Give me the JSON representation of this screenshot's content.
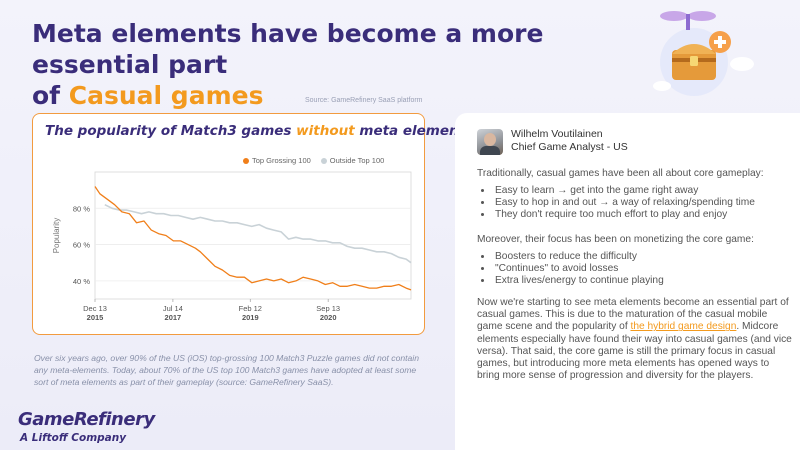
{
  "title": {
    "line1": "Meta elements have become a more essential part",
    "line2_prefix": "of ",
    "line2_accent": "Casual games"
  },
  "source_note": "Source: GameRefinery SaaS platform",
  "chart": {
    "title_prefix": "The popularity of Match3 games ",
    "title_accent": "without",
    "title_suffix": " meta elements"
  },
  "chart_data": {
    "type": "line",
    "ylabel": "Popularity",
    "xlabel": "",
    "ylim": [
      30,
      100
    ],
    "y_ticks": [
      40,
      60,
      80
    ],
    "y_tick_labels": [
      "40 %",
      "60 %",
      "80 %"
    ],
    "xlim": [
      2015.95,
      2022.4
    ],
    "x_ticks": [
      {
        "value": 2015.95,
        "month": "Dec 13",
        "year": "2015"
      },
      {
        "value": 2017.54,
        "month": "Jul 14",
        "year": "2017"
      },
      {
        "value": 2019.12,
        "month": "Feb 12",
        "year": "2019"
      },
      {
        "value": 2020.71,
        "month": "Sep 13",
        "year": "2020"
      }
    ],
    "series": [
      {
        "name": "Top Grossing 100",
        "color": "#f07f1a",
        "x": [
          2015.95,
          2016.05,
          2016.2,
          2016.35,
          2016.5,
          2016.65,
          2016.8,
          2016.95,
          2017.1,
          2017.25,
          2017.4,
          2017.55,
          2017.7,
          2017.85,
          2018.0,
          2018.1,
          2018.25,
          2018.4,
          2018.55,
          2018.7,
          2018.85,
          2019.0,
          2019.15,
          2019.3,
          2019.45,
          2019.6,
          2019.75,
          2019.9,
          2020.05,
          2020.2,
          2020.35,
          2020.5,
          2020.65,
          2020.8,
          2020.95,
          2021.1,
          2021.25,
          2021.4,
          2021.55,
          2021.7,
          2021.85,
          2022.0,
          2022.15,
          2022.3,
          2022.4
        ],
        "values": [
          92,
          88,
          85,
          82,
          78,
          77,
          72,
          73,
          68,
          66,
          65,
          62,
          62,
          60,
          58,
          56,
          52,
          48,
          46,
          43,
          42,
          42,
          39,
          40,
          41,
          40,
          41,
          39,
          40,
          42,
          41,
          40,
          38,
          39,
          37,
          37,
          38,
          37,
          36,
          36,
          37,
          37,
          38,
          36,
          35
        ]
      },
      {
        "name": "Outside Top 100",
        "color": "#c9d2d7",
        "x": [
          2016.15,
          2016.3,
          2016.45,
          2016.6,
          2016.75,
          2016.9,
          2017.05,
          2017.2,
          2017.35,
          2017.5,
          2017.65,
          2017.8,
          2017.95,
          2018.1,
          2018.25,
          2018.4,
          2018.55,
          2018.7,
          2018.85,
          2019.0,
          2019.15,
          2019.3,
          2019.45,
          2019.6,
          2019.75,
          2019.9,
          2020.05,
          2020.2,
          2020.35,
          2020.5,
          2020.65,
          2020.8,
          2020.95,
          2021.1,
          2021.25,
          2021.4,
          2021.55,
          2021.7,
          2021.85,
          2022.0,
          2022.15,
          2022.3,
          2022.4
        ],
        "values": [
          82,
          80,
          79,
          79,
          78,
          77,
          78,
          77,
          77,
          76,
          76,
          75,
          74,
          75,
          74,
          73,
          73,
          72,
          72,
          71,
          70,
          71,
          69,
          68,
          67,
          63,
          64,
          63,
          63,
          62,
          62,
          61,
          61,
          59,
          58,
          58,
          57,
          56,
          56,
          55,
          53,
          52,
          50
        ]
      }
    ]
  },
  "caption": "Over six years ago, over 90% of the US (iOS) top-grossing 100 Match3 Puzzle games did not contain any meta-elements. Today, about 70% of the US top 100 Match3 games have adopted at least some sort of meta elements as part of their gameplay (source: GameRefinery SaaS).",
  "logo": {
    "name": "GameRefinery",
    "sub": "A Liftoff Company"
  },
  "author": {
    "name": "Wilhelm Voutilainen",
    "role": "Chief Game Analyst - US"
  },
  "article": {
    "intro": "Traditionally, casual games have been all about core gameplay:",
    "bullets1": [
      "Easy to learn → get into the game right away",
      "Easy to hop in and out → a way of relaxing/spending time",
      "They don't require too much effort to play and enjoy"
    ],
    "mid": "Moreover, their focus has been on monetizing the core game:",
    "bullets2": [
      "Boosters to reduce the difficulty",
      "\"Continues\" to avoid losses",
      "Extra lives/energy to continue playing"
    ],
    "para_before_link": "Now we're starting to see meta elements become an essential part of casual games. This is due to the maturation of the casual mobile game scene and the popularity of ",
    "link_text": "the hybrid game design",
    "para_after_link": ". Midcore elements especially have found their way into casual games (and vice versa). That said, the core game is still the primary focus in casual games, but introducing more meta elements has opened ways to bring more sense of progression and diversity for the players."
  },
  "colors": {
    "brand": "#3a2d7a",
    "accent": "#f39a1e",
    "top_grossing": "#f07f1a",
    "outside_top": "#c9d2d7"
  }
}
